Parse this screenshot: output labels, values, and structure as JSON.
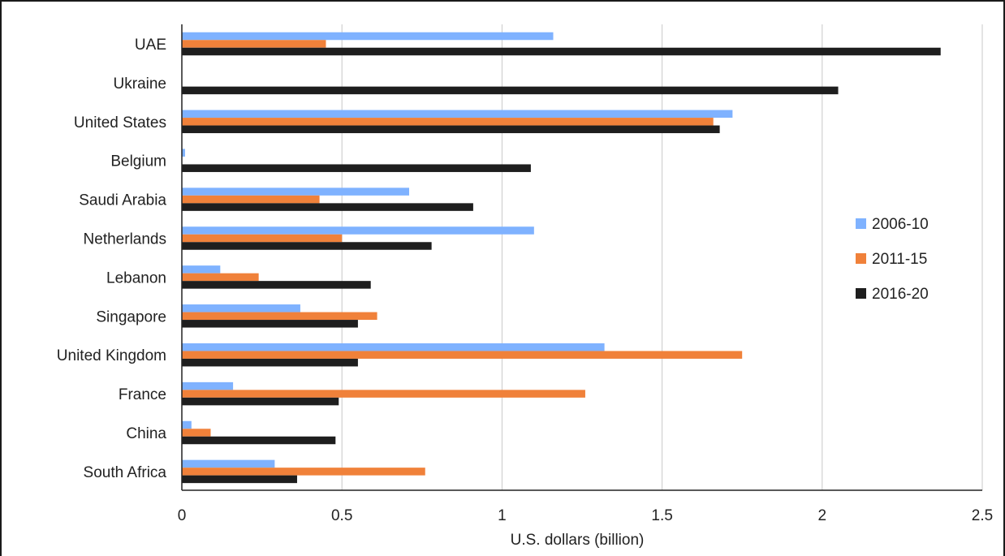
{
  "chart_data": {
    "type": "bar",
    "orientation": "horizontal",
    "title": "",
    "xlabel": "U.S. dollars (billion)",
    "ylabel": "",
    "xlim": [
      0,
      2.5
    ],
    "xticks": [
      0,
      0.5,
      1,
      1.5,
      2,
      2.5
    ],
    "xtick_labels": [
      "0",
      "0.5",
      "1",
      "1.5",
      "2",
      "2.5"
    ],
    "grid": "vertical",
    "legend_position": "right",
    "categories": [
      "UAE",
      "Ukraine",
      "United States",
      "Belgium",
      "Saudi Arabia",
      "Netherlands",
      "Lebanon",
      "Singapore",
      "United Kingdom",
      "France",
      "China",
      "South Africa"
    ],
    "series": [
      {
        "name": "2006-10",
        "color": "#7fb2ff",
        "values": [
          1.16,
          0,
          1.72,
          0.01,
          0.71,
          1.1,
          0.12,
          0.37,
          1.32,
          0.16,
          0.03,
          0.29
        ]
      },
      {
        "name": "2011-15",
        "color": "#f0813a",
        "values": [
          0.45,
          0,
          1.66,
          0,
          0.43,
          0.5,
          0.24,
          0.61,
          1.75,
          1.26,
          0.09,
          0.76
        ]
      },
      {
        "name": "2016-20",
        "color": "#1e1e1e",
        "values": [
          2.37,
          2.05,
          1.68,
          1.09,
          0.91,
          0.78,
          0.59,
          0.55,
          0.55,
          0.49,
          0.48,
          0.36
        ]
      }
    ]
  }
}
